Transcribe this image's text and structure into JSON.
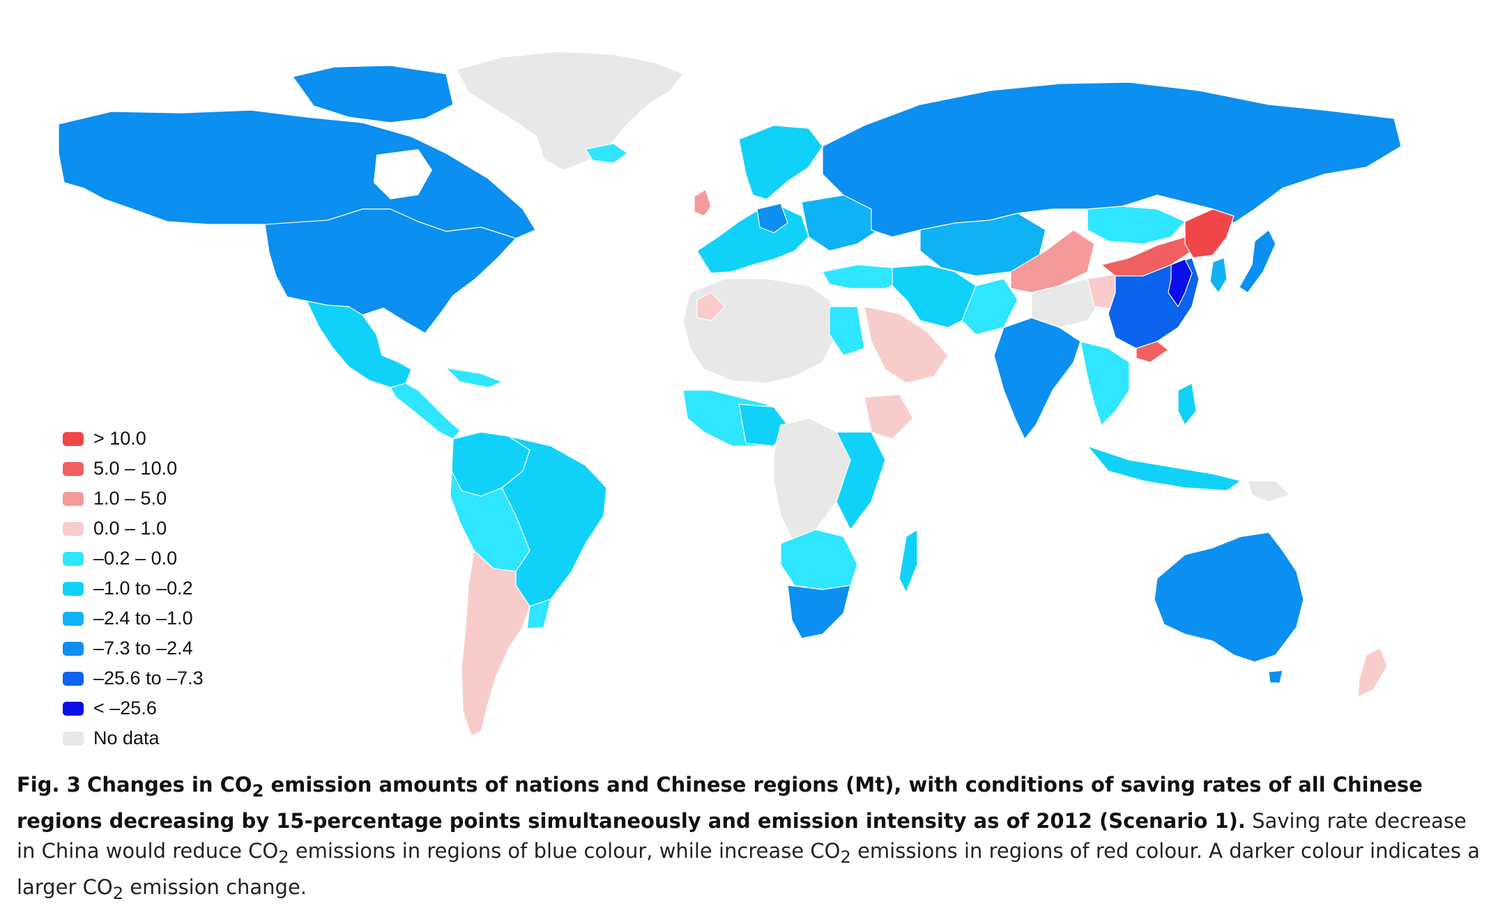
{
  "colors": {
    "gt10": "#f0464a",
    "5to10": "#f06060",
    "1to5": "#f49a9a",
    "0to1": "#f9cccc",
    "m02to0": "#2ee6ff",
    "m1to02": "#10d2f8",
    "m24to1": "#0fb2f4",
    "m73to24": "#0b8ff0",
    "m256to73": "#0b63ee",
    "ltm256": "#0a0ee8",
    "nodata": "#e8e8e8"
  },
  "legend": {
    "items": [
      {
        "label": "> 10.0",
        "color": "#f0464a"
      },
      {
        "label": "5.0 – 10.0",
        "color": "#f06060"
      },
      {
        "label": "1.0 – 5.0",
        "color": "#f49a9a"
      },
      {
        "label": "0.0 – 1.0",
        "color": "#f9cccc"
      },
      {
        "label": "–0.2 – 0.0",
        "color": "#2ee6ff"
      },
      {
        "label": "–1.0 to –0.2",
        "color": "#10d2f8"
      },
      {
        "label": "–2.4 to –1.0",
        "color": "#0fb2f4"
      },
      {
        "label": "–7.3 to –2.4",
        "color": "#0b8ff0"
      },
      {
        "label": "–25.6 to –7.3",
        "color": "#0b63ee"
      },
      {
        "label": "< –25.6",
        "color": "#0a0ee8"
      },
      {
        "label": "No data",
        "color": "#e8e8e8"
      }
    ]
  },
  "caption": {
    "fig_label": "Fig. 3",
    "bold_a": "Changes in CO",
    "bold_sub": "2",
    "bold_b": " emission amounts of nations and Chinese regions (Mt), with conditions of saving rates of all Chinese regions decreasing by 15-percentage points simultaneously and emission intensity as of 2012 (Scenario 1).",
    "normal_a": " Saving rate decrease in China would reduce CO",
    "normal_sub1": "2",
    "normal_b": " emissions in regions of blue colour, while increase CO",
    "normal_sub2": "2",
    "normal_c": " emissions in regions of red colour. A darker colour indicates a larger CO",
    "normal_sub3": "2",
    "normal_d": " emission change."
  }
}
